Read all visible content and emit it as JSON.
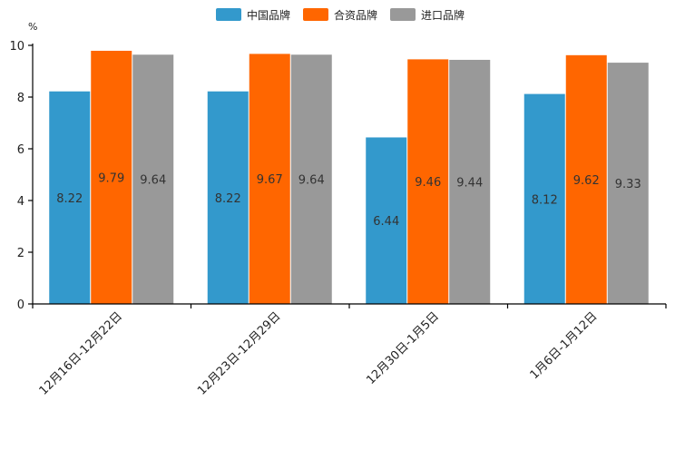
{
  "chart_data": {
    "type": "bar",
    "unit": "%",
    "categories": [
      "12月16日-12月22日",
      "12月23日-12月29日",
      "12月30日-1月5日",
      "1月6日-1月12日"
    ],
    "series": [
      {
        "name": "中国品牌",
        "color": "#3399cc",
        "values": [
          8.22,
          8.22,
          6.44,
          8.12
        ]
      },
      {
        "name": "合资品牌",
        "color": "#ff6600",
        "values": [
          9.79,
          9.67,
          9.46,
          9.62
        ]
      },
      {
        "name": "进口品牌",
        "color": "#999999",
        "values": [
          9.64,
          9.64,
          9.44,
          9.33
        ]
      }
    ],
    "ylim": [
      0,
      10
    ],
    "yticks": [
      "0",
      "2",
      "4",
      "6",
      "8",
      "10"
    ],
    "legend_position": "top-center",
    "grid": false
  }
}
